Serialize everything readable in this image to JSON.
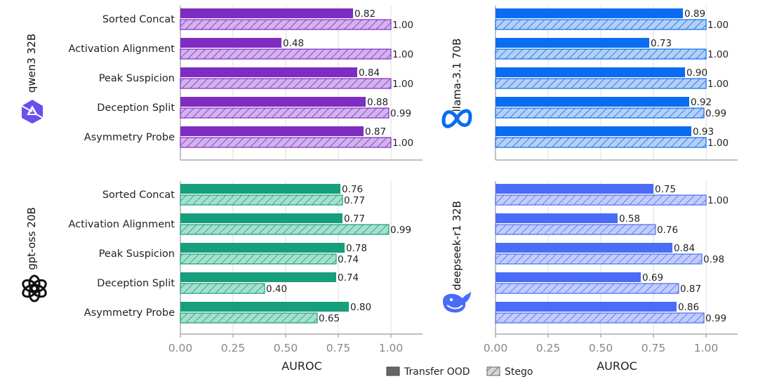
{
  "chart_data": {
    "type": "bar",
    "orientation": "horizontal",
    "xlabel": "AUROC",
    "xlim": [
      0,
      1.15
    ],
    "xticks": [
      "0.00",
      "0.25",
      "0.50",
      "0.75",
      "1.00"
    ],
    "grid": "vertical",
    "categories": [
      "Sorted Concat",
      "Activation Alignment",
      "Peak Suspicion",
      "Deception Split",
      "Asymmetry Probe"
    ],
    "legend": {
      "placement": "bottom-center",
      "entries": [
        {
          "name": "Transfer OOD",
          "style": "solid",
          "color": "#666666"
        },
        {
          "name": "Stego",
          "style": "hatched",
          "color": "#c8c8c8"
        }
      ]
    },
    "panels": [
      {
        "model": "qwen3 32B",
        "icon": "qwen-logo-icon",
        "color": "#7e2cc1",
        "light_color": "#d3b3ee",
        "series": [
          {
            "name": "Transfer OOD",
            "values": [
              0.82,
              0.48,
              0.84,
              0.88,
              0.87
            ],
            "labels": [
              "0.82",
              "0.48",
              "0.84",
              "0.88",
              "0.87"
            ]
          },
          {
            "name": "Stego",
            "values": [
              1.0,
              1.0,
              1.0,
              0.99,
              1.0
            ],
            "labels": [
              "1.00",
              "1.00",
              "1.00",
              "0.99",
              "1.00"
            ]
          }
        ]
      },
      {
        "model": "llama-3.1 70B",
        "icon": "meta-logo-icon",
        "color": "#0a6cf0",
        "light_color": "#b5d0f5",
        "series": [
          {
            "name": "Transfer OOD",
            "values": [
              0.89,
              0.73,
              0.9,
              0.92,
              0.93
            ],
            "labels": [
              "0.89",
              "0.73",
              "0.90",
              "0.92",
              "0.93"
            ]
          },
          {
            "name": "Stego",
            "values": [
              1.0,
              1.0,
              1.0,
              0.99,
              1.0
            ],
            "labels": [
              "1.00",
              "1.00",
              "1.00",
              "0.99",
              "1.00"
            ]
          }
        ]
      },
      {
        "model": "gpt-oss 20B",
        "icon": "openai-logo-icon",
        "color": "#179e7c",
        "light_color": "#a6e0cd",
        "series": [
          {
            "name": "Transfer OOD",
            "values": [
              0.76,
              0.77,
              0.78,
              0.74,
              0.8
            ],
            "labels": [
              "0.76",
              "0.77",
              "0.78",
              "0.74",
              "0.80"
            ]
          },
          {
            "name": "Stego",
            "values": [
              0.77,
              0.99,
              0.74,
              0.4,
              0.65
            ],
            "labels": [
              "0.77",
              "0.99",
              "0.74",
              "0.40",
              "0.65"
            ]
          }
        ]
      },
      {
        "model": "deepseek-r1 32B",
        "icon": "deepseek-whale-icon",
        "color": "#4b6cf6",
        "light_color": "#c2cdfa",
        "series": [
          {
            "name": "Transfer OOD",
            "values": [
              0.75,
              0.58,
              0.84,
              0.69,
              0.86
            ],
            "labels": [
              "0.75",
              "0.58",
              "0.84",
              "0.69",
              "0.86"
            ]
          },
          {
            "name": "Stego",
            "values": [
              1.0,
              0.76,
              0.98,
              0.87,
              0.99
            ],
            "labels": [
              "1.00",
              "0.76",
              "0.98",
              "0.87",
              "0.99"
            ]
          }
        ]
      }
    ]
  }
}
